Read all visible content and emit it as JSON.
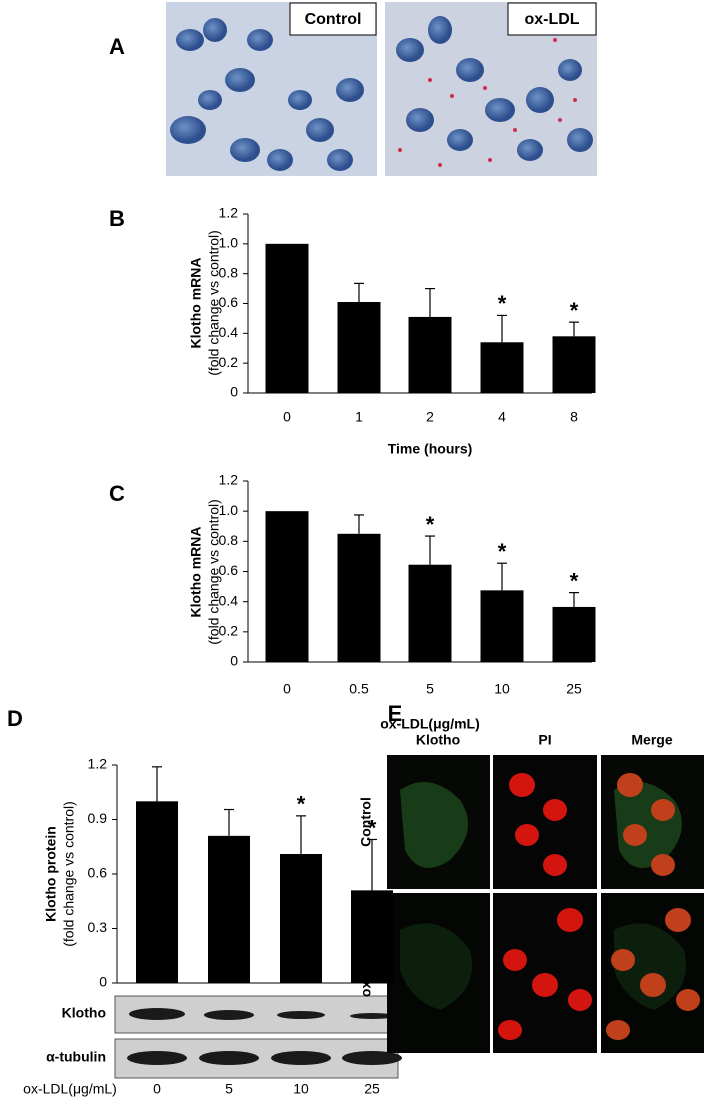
{
  "panel_letters": [
    "A",
    "B",
    "C",
    "D",
    "E"
  ],
  "panel_a": {
    "labels": [
      "Control",
      "ox-LDL"
    ]
  },
  "chart_data": [
    {
      "type": "bar",
      "y_label": [
        "Klotho mRNA",
        "(fold change vs control)"
      ],
      "x_label": "Time (hours)",
      "categories": [
        "0",
        "1",
        "2",
        "4",
        "8"
      ],
      "values": [
        1.0,
        0.61,
        0.51,
        0.34,
        0.38
      ],
      "errors": [
        0,
        0.125,
        0.19,
        0.18,
        0.095
      ],
      "significance": [
        null,
        null,
        null,
        "*",
        "*"
      ],
      "color": "#000000",
      "ylim": [
        0,
        1.2
      ],
      "yticks": [
        0,
        0.2,
        0.4,
        0.6,
        0.8,
        {
          "value": 1,
          "label": "1.0"
        },
        1.2
      ]
    },
    {
      "type": "bar",
      "y_label": [
        "Klotho mRNA",
        "(fold change vs control)"
      ],
      "x_label": "ox-LDL(μg/mL)",
      "categories": [
        "0",
        "0.5",
        "5",
        "10",
        "25"
      ],
      "values": [
        1.0,
        0.85,
        0.645,
        0.475,
        0.365
      ],
      "errors": [
        0,
        0.125,
        0.19,
        0.18,
        0.095
      ],
      "significance": [
        null,
        null,
        "*",
        "*",
        "*"
      ],
      "color": "#000000",
      "ylim": [
        0,
        1.2
      ],
      "yticks": [
        0,
        0.2,
        0.4,
        0.6,
        0.8,
        {
          "value": 1,
          "label": "1.0"
        },
        1.2
      ]
    },
    {
      "type": "bar",
      "y_label": [
        "Klotho protein",
        "(fold change vs control)"
      ],
      "x_label": "ox-LDL(μg/mL)",
      "categories": [
        "0",
        "5",
        "10",
        "25"
      ],
      "values": [
        1.0,
        0.81,
        0.71,
        0.51
      ],
      "errors": [
        0.19,
        0.145,
        0.21,
        0.28
      ],
      "significance": [
        null,
        null,
        "*",
        "*"
      ],
      "color": "#000000",
      "ylim": [
        0,
        1.2
      ],
      "yticks": [
        0,
        0.3,
        0.6,
        0.9,
        1.2
      ],
      "blot_labels": [
        "Klotho",
        "α-tubulin"
      ]
    }
  ],
  "panel_e": {
    "columns": [
      "Klotho",
      "PI",
      "Merge"
    ],
    "rows": [
      "Control",
      "ox-LDL"
    ]
  }
}
